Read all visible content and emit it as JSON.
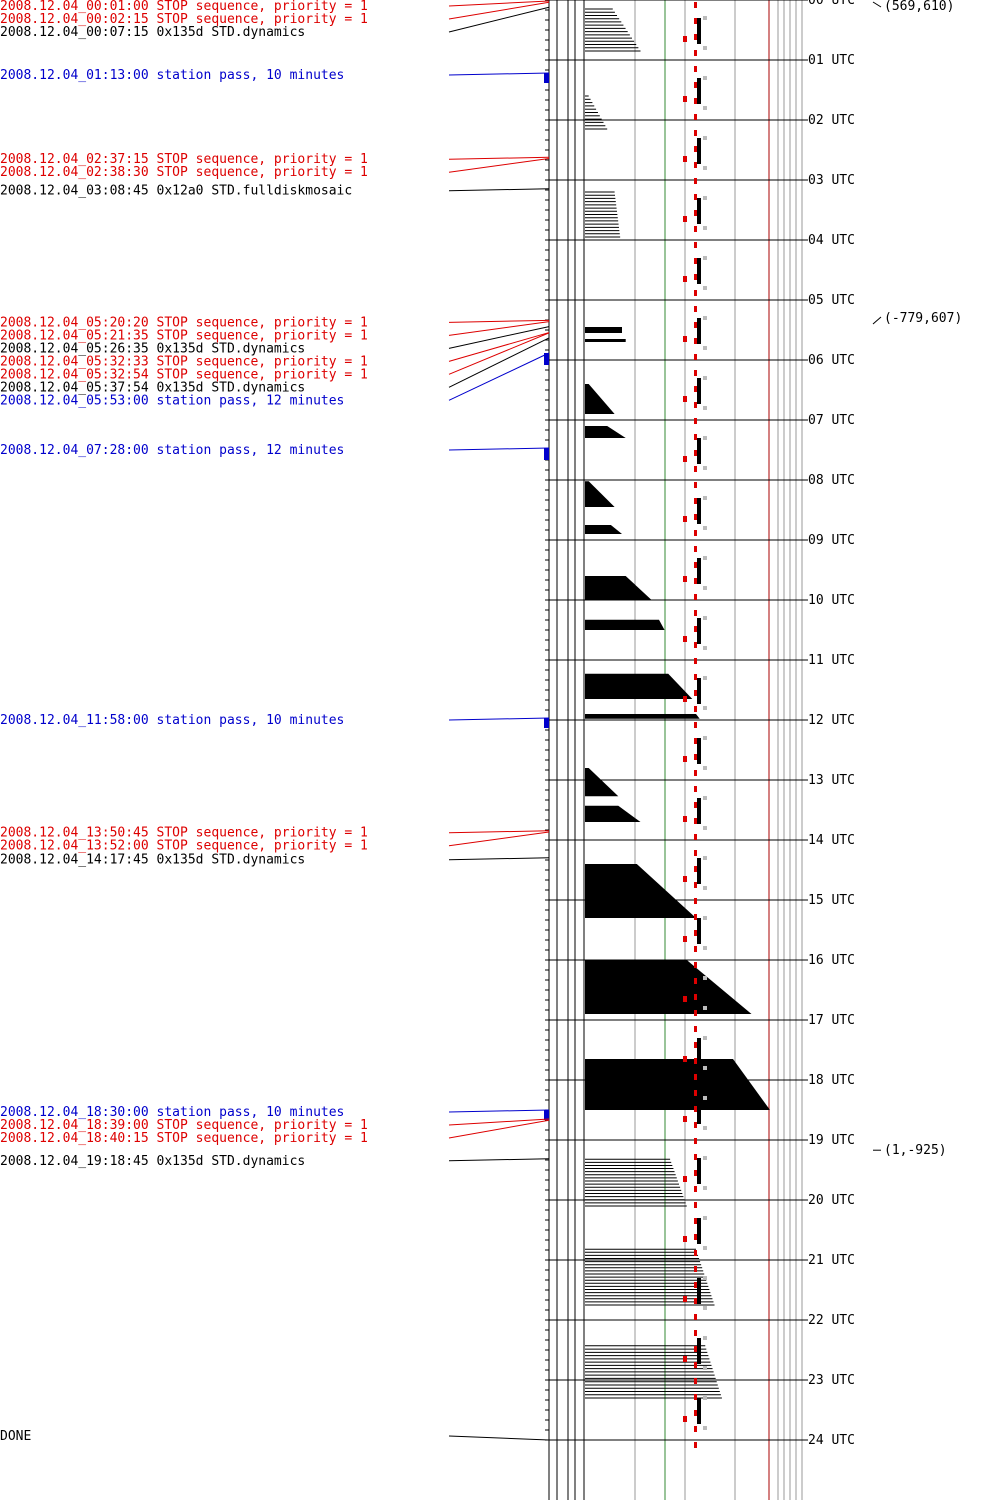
{
  "colors": {
    "stop": "#dd0000",
    "station": "#0000cc",
    "normal": "#000000",
    "green": "#338833",
    "grid": "#999999"
  },
  "events": [
    {
      "text": "2008.12.04_00:01:00 STOP sequence, priority = 1",
      "type": "stop",
      "hour": 0.0167
    },
    {
      "text": "2008.12.04_00:02:15 STOP sequence, priority = 1",
      "type": "stop",
      "hour": 0.0375
    },
    {
      "text": "2008.12.04_00:07:15 0x135d STD.dynamics",
      "type": "normal",
      "hour": 0.1208
    },
    {
      "text": "2008.12.04_01:13:00 station pass, 10 minutes",
      "type": "station",
      "hour": 1.2167,
      "duration_min": 10
    },
    {
      "text": "2008.12.04_02:37:15 STOP sequence, priority = 1",
      "type": "stop",
      "hour": 2.6208
    },
    {
      "text": "2008.12.04_02:38:30 STOP sequence, priority = 1",
      "type": "stop",
      "hour": 2.6417
    },
    {
      "text": "2008.12.04_03:08:45 0x12a0 STD.fulldiskmosaic",
      "type": "normal",
      "hour": 3.1458
    },
    {
      "text": "2008.12.04_05:20:20 STOP sequence, priority = 1",
      "type": "stop",
      "hour": 5.3389
    },
    {
      "text": "2008.12.04_05:21:35 STOP sequence, priority = 1",
      "type": "stop",
      "hour": 5.3597
    },
    {
      "text": "2008.12.04_05:26:35 0x135d STD.dynamics",
      "type": "normal",
      "hour": 5.4431
    },
    {
      "text": "2008.12.04_05:32:33 STOP sequence, priority = 1",
      "type": "stop",
      "hour": 5.5425
    },
    {
      "text": "2008.12.04_05:32:54 STOP sequence, priority = 1",
      "type": "stop",
      "hour": 5.5483
    },
    {
      "text": "2008.12.04_05:37:54 0x135d STD.dynamics",
      "type": "normal",
      "hour": 5.6317
    },
    {
      "text": "2008.12.04_05:53:00 station pass, 12 minutes",
      "type": "station",
      "hour": 5.8833,
      "duration_min": 12
    },
    {
      "text": "2008.12.04_07:28:00 station pass, 12 minutes",
      "type": "station",
      "hour": 7.4667,
      "duration_min": 12
    },
    {
      "text": "2008.12.04_11:58:00 station pass, 10 minutes",
      "type": "station",
      "hour": 11.9667,
      "duration_min": 10
    },
    {
      "text": "2008.12.04_13:50:45 STOP sequence, priority = 1",
      "type": "stop",
      "hour": 13.8458
    },
    {
      "text": "2008.12.04_13:52:00 STOP sequence, priority = 1",
      "type": "stop",
      "hour": 13.8667
    },
    {
      "text": "2008.12.04_14:17:45 0x135d STD.dynamics",
      "type": "normal",
      "hour": 14.2958
    },
    {
      "text": "2008.12.04_18:30:00 station pass, 10 minutes",
      "type": "station",
      "hour": 18.5,
      "duration_min": 10
    },
    {
      "text": "2008.12.04_18:39:00 STOP sequence, priority = 1",
      "type": "stop",
      "hour": 18.65
    },
    {
      "text": "2008.12.04_18:40:15 STOP sequence, priority = 1",
      "type": "stop",
      "hour": 18.6708
    },
    {
      "text": "2008.12.04_19:18:45 0x135d STD.dynamics",
      "type": "normal",
      "hour": 19.3125
    },
    {
      "text": "DONE",
      "type": "normal",
      "hour": 24.0
    }
  ],
  "hour_labels": [
    "00 UTC",
    "01 UTC",
    "02 UTC",
    "03 UTC",
    "04 UTC",
    "05 UTC",
    "06 UTC",
    "07 UTC",
    "08 UTC",
    "09 UTC",
    "10 UTC",
    "11 UTC",
    "12 UTC",
    "13 UTC",
    "14 UTC",
    "15 UTC",
    "16 UTC",
    "17 UTC",
    "18 UTC",
    "19 UTC",
    "20 UTC",
    "21 UTC",
    "22 UTC",
    "23 UTC",
    "24 UTC"
  ],
  "pointing_notes": [
    {
      "text": "(569,610)",
      "hour": 0.1,
      "marker": "slash-down"
    },
    {
      "text": "(-779,607)",
      "hour": 5.3,
      "marker": "slash-up"
    },
    {
      "text": "(1,-925)",
      "hour": 19.17,
      "marker": "dash"
    }
  ],
  "activity_blocks": [
    {
      "start": 0.15,
      "end": 0.85,
      "w0": 0.15,
      "w1": 0.3,
      "style": "lines"
    },
    {
      "start": 1.6,
      "end": 2.15,
      "w0": 0.02,
      "w1": 0.12,
      "style": "lines"
    },
    {
      "start": 3.2,
      "end": 3.95,
      "w0": 0.16,
      "w1": 0.19,
      "style": "lines"
    },
    {
      "start": 5.45,
      "end": 5.55,
      "w0": 0.2,
      "w1": 0.2,
      "style": "solid"
    },
    {
      "start": 5.65,
      "end": 5.7,
      "w0": 0.22,
      "w1": 0.22,
      "style": "solid"
    },
    {
      "start": 6.4,
      "end": 6.9,
      "w0": 0.02,
      "w1": 0.16,
      "style": "solid"
    },
    {
      "start": 7.1,
      "end": 7.3,
      "w0": 0.12,
      "w1": 0.22,
      "style": "solid"
    },
    {
      "start": 8.02,
      "end": 8.45,
      "w0": 0.02,
      "w1": 0.16,
      "style": "solid"
    },
    {
      "start": 8.75,
      "end": 8.9,
      "w0": 0.14,
      "w1": 0.2,
      "style": "solid"
    },
    {
      "start": 9.6,
      "end": 10.0,
      "w0": 0.22,
      "w1": 0.36,
      "style": "solid"
    },
    {
      "start": 10.33,
      "end": 10.5,
      "w0": 0.4,
      "w1": 0.43,
      "style": "solid"
    },
    {
      "start": 11.23,
      "end": 11.65,
      "w0": 0.45,
      "w1": 0.58,
      "style": "solid"
    },
    {
      "start": 11.9,
      "end": 11.98,
      "w0": 0.6,
      "w1": 0.62,
      "style": "solid"
    },
    {
      "start": 12.8,
      "end": 13.27,
      "w0": 0.02,
      "w1": 0.18,
      "style": "solid"
    },
    {
      "start": 13.43,
      "end": 13.7,
      "w0": 0.18,
      "w1": 0.3,
      "style": "solid"
    },
    {
      "start": 14.4,
      "end": 15.3,
      "w0": 0.28,
      "w1": 0.6,
      "style": "solid"
    },
    {
      "start": 16.0,
      "end": 16.9,
      "w0": 0.55,
      "w1": 0.9,
      "style": "solid"
    },
    {
      "start": 17.65,
      "end": 18.5,
      "w0": 0.8,
      "w1": 1.0,
      "style": "solid"
    },
    {
      "start": 19.32,
      "end": 20.1,
      "w0": 0.46,
      "w1": 0.55,
      "style": "lines"
    },
    {
      "start": 20.82,
      "end": 21.75,
      "w0": 0.6,
      "w1": 0.7,
      "style": "lines"
    },
    {
      "start": 22.43,
      "end": 23.3,
      "w0": 0.65,
      "w1": 0.74,
      "style": "lines"
    }
  ]
}
